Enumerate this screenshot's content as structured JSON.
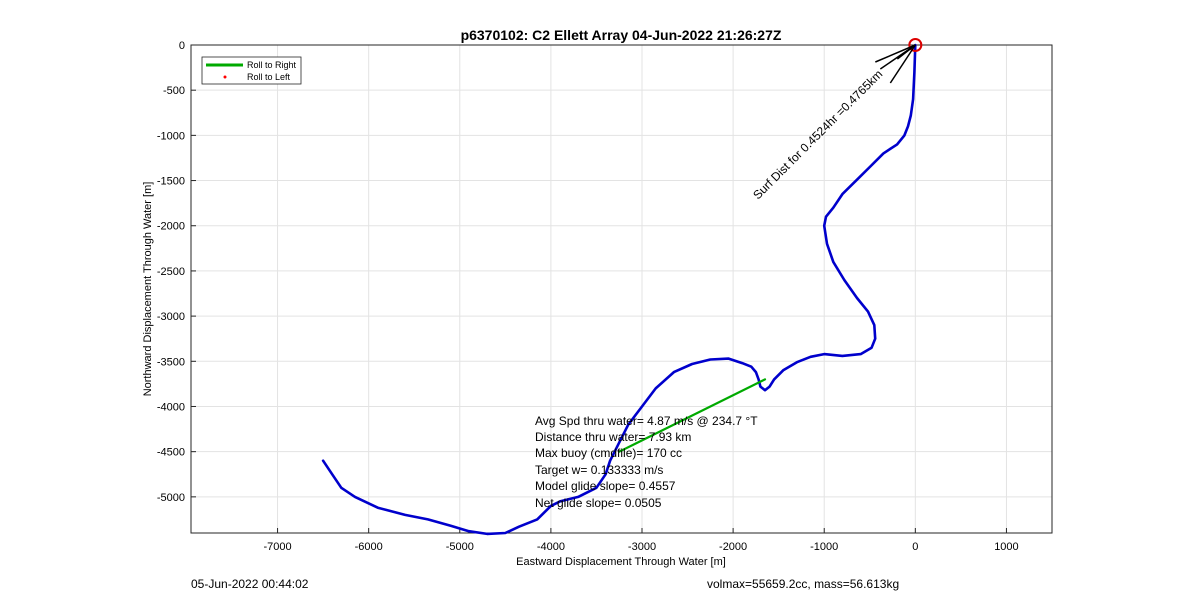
{
  "chart_data": {
    "type": "line",
    "title": "p6370102: C2 Ellett Array 04-Jun-2022 21:26:27Z",
    "xlabel": "Eastward Displacement Through Water [m]",
    "ylabel": "Northward Displacement Through Water [m]",
    "xlim": [
      -7950,
      1500
    ],
    "ylim": [
      -5400,
      0
    ],
    "xticks": [
      -7000,
      -6000,
      -5000,
      -4000,
      -3000,
      -2000,
      -1000,
      0,
      1000
    ],
    "yticks": [
      0,
      -500,
      -1000,
      -1500,
      -2000,
      -2500,
      -3000,
      -3500,
      -4000,
      -4500,
      -5000
    ],
    "grid": true,
    "legend": {
      "placement": "top-left",
      "entries": [
        {
          "label": "Roll to Right",
          "color": "#00aa00",
          "marker": "line"
        },
        {
          "label": "Roll to Left",
          "color": "#ff0000",
          "marker": "dot"
        }
      ]
    },
    "series": [
      {
        "color": "#0000cc",
        "x": [
          0,
          -10,
          -25,
          -50,
          -80,
          -120,
          -200,
          -350,
          -500,
          -650,
          -800,
          -900,
          -980,
          -1000,
          -970,
          -900,
          -780,
          -640,
          -520,
          -450,
          -440,
          -480,
          -600,
          -800,
          -1000,
          -1150,
          -1300,
          -1450,
          -1550,
          -1600,
          -1650,
          -1700,
          -1720,
          -1750,
          -1800,
          -1900,
          -2050,
          -2250,
          -2450,
          -2650,
          -2850,
          -3000,
          -3150,
          -3250,
          -3350,
          -3400,
          -3500,
          -3700,
          -3900,
          -4000,
          -4150,
          -4350,
          -4500,
          -4700,
          -4900,
          -5100,
          -5350,
          -5600,
          -5900,
          -6150,
          -6300,
          -6400,
          -6500
        ],
        "y": [
          0,
          -300,
          -600,
          -780,
          -900,
          -1000,
          -1100,
          -1200,
          -1350,
          -1500,
          -1650,
          -1800,
          -1900,
          -2000,
          -2200,
          -2400,
          -2600,
          -2800,
          -2950,
          -3100,
          -3250,
          -3350,
          -3420,
          -3440,
          -3420,
          -3450,
          -3510,
          -3600,
          -3700,
          -3780,
          -3820,
          -3780,
          -3700,
          -3620,
          -3560,
          -3520,
          -3470,
          -3480,
          -3530,
          -3620,
          -3800,
          -4000,
          -4200,
          -4400,
          -4600,
          -4750,
          -4900,
          -5000,
          -5050,
          -5100,
          -5250,
          -5330,
          -5400,
          -5410,
          -5380,
          -5320,
          -5250,
          -5200,
          -5120,
          -5000,
          -4900,
          -4750,
          -4600
        ]
      },
      {
        "color": "#00aa00",
        "x": [
          -1650,
          -3250
        ],
        "y": [
          -3700,
          -4500
        ]
      }
    ],
    "annotations": [
      "Avg Spd thru water=  4.87 m/s @ 234.7 °T",
      "Distance thru water=  7.93 km",
      "Max buoy (cmdfile)= 170 cc",
      "Target w= 0.133333 m/s",
      "Model glide slope= 0.4557",
      "Net glide slope= 0.0505"
    ],
    "rotated_annotation": "Surf Dist for 0.4524hr =0.4765km"
  },
  "footer": {
    "left": "05-Jun-2022 00:44:02",
    "right": "volmax=55659.2cc, mass=56.613kg"
  }
}
